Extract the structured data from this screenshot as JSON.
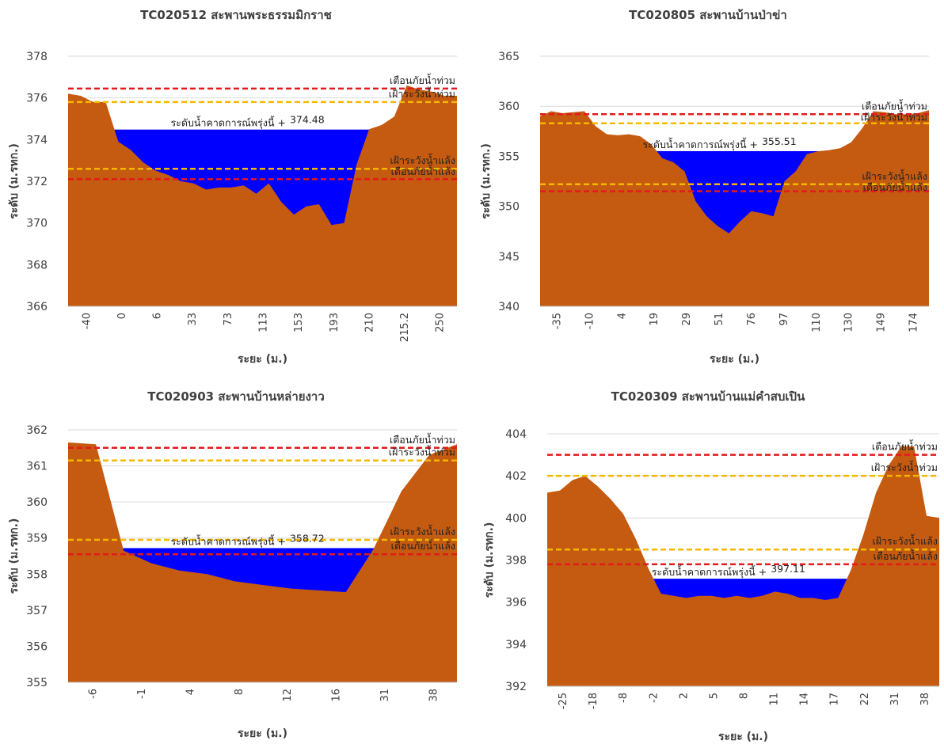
{
  "chart_data": [
    {
      "type": "area",
      "title": "TC020512 สะพานพระธรรมมิกราช",
      "xlabel": "ระยะ (ม.)",
      "ylabel": "ระดับ (ม.รทก.)",
      "ylim": [
        366,
        378
      ],
      "yticks": [
        366,
        368,
        370,
        372,
        374,
        376,
        378
      ],
      "x_tick_labels": [
        "-40",
        "0",
        "6",
        "33",
        "73",
        "113",
        "153",
        "193",
        "210",
        "215.2",
        "250"
      ],
      "ground": [
        376.2,
        376.1,
        375.8,
        375.8,
        373.9,
        373.5,
        372.9,
        372.5,
        372.3,
        372.0,
        371.9,
        371.6,
        371.7,
        371.7,
        371.8,
        371.4,
        371.9,
        371.0,
        370.4,
        370.8,
        370.9,
        369.9,
        370.0,
        372.8,
        374.5,
        374.7,
        375.1,
        376.6,
        376.4,
        376.3,
        376.1,
        376.1
      ],
      "forecast": {
        "label": "ระดับน้ำคาดการณ์พรุ่งนี้ +",
        "value": 374.48,
        "value_text": "374.48"
      },
      "levels": [
        {
          "name": "เตือนภัยน้ำท่วม",
          "value": 376.45,
          "color": "#e31a1c"
        },
        {
          "name": "เฝ้าระวังน้ำท่วม",
          "value": 375.8,
          "color": "#f5b800"
        },
        {
          "name": "เฝ้าระวังน้ำแล้ง",
          "value": 372.6,
          "color": "#f5b800"
        },
        {
          "name": "เตือนภัยน้ำแล้ง",
          "value": 372.1,
          "color": "#e31a1c"
        }
      ]
    },
    {
      "type": "area",
      "title": "TC020805 สะพานบ้านป่าข่า",
      "xlabel": "ระยะ (ม.)",
      "ylabel": "ระดับ (ม.รทก.)",
      "ylim": [
        340,
        365
      ],
      "yticks": [
        340,
        345,
        350,
        355,
        360,
        365
      ],
      "x_tick_labels": [
        "-35",
        "-10",
        "4",
        "19",
        "29",
        "51",
        "76",
        "97",
        "110",
        "130",
        "149",
        "174"
      ],
      "ground": [
        359.0,
        359.5,
        359.3,
        359.4,
        359.5,
        358.0,
        357.2,
        357.1,
        357.2,
        357.0,
        356.2,
        354.8,
        354.4,
        353.5,
        350.5,
        349.0,
        348.0,
        347.3,
        348.5,
        349.5,
        349.3,
        349.0,
        352.5,
        353.5,
        355.2,
        355.5,
        355.6,
        355.8,
        356.4,
        357.8,
        359.5,
        359.4,
        359.2,
        359.2,
        359.3,
        359.6
      ],
      "forecast": {
        "label": "ระดับน้ำคาดการณ์พรุ่งนี้ +",
        "value": 355.51,
        "value_text": "355.51"
      },
      "levels": [
        {
          "name": "เตือนภัยน้ำท่วม",
          "value": 359.2,
          "color": "#e31a1c"
        },
        {
          "name": "เฝ้าระวังน้ำท่วม",
          "value": 358.3,
          "color": "#f5b800"
        },
        {
          "name": "เฝ้าระวังน้ำแล้ง",
          "value": 352.2,
          "color": "#f5b800"
        },
        {
          "name": "เตือนภัยน้ำแล้ง",
          "value": 351.5,
          "color": "#e31a1c"
        }
      ]
    },
    {
      "type": "area",
      "title": "TC020903 สะพานบ้านหล่ายงาว",
      "xlabel": "ระยะ (ม.)",
      "ylabel": "ระดับ (ม.รทก.)",
      "ylim": [
        355,
        362
      ],
      "yticks": [
        355,
        356,
        357,
        358,
        359,
        360,
        361,
        362
      ],
      "x_tick_labels": [
        "-6",
        "-1",
        "4",
        "8",
        "12",
        "16",
        "31",
        "38"
      ],
      "ground": [
        361.65,
        361.6,
        358.65,
        358.3,
        358.1,
        358.0,
        357.8,
        357.7,
        357.6,
        357.55,
        357.5,
        358.7,
        360.3,
        361.3,
        361.6
      ],
      "forecast": {
        "label": "ระดับน้ำคาดการณ์พรุ่งนี้ +",
        "value": 358.72,
        "value_text": "358.72"
      },
      "levels": [
        {
          "name": "เตือนภัยน้ำท่วม",
          "value": 361.5,
          "color": "#e31a1c"
        },
        {
          "name": "เฝ้าระวังน้ำท่วม",
          "value": 361.15,
          "color": "#f5b800"
        },
        {
          "name": "เฝ้าระวังน้ำแล้ง",
          "value": 358.95,
          "color": "#f5b800"
        },
        {
          "name": "เตือนภัยน้ำแล้ง",
          "value": 358.55,
          "color": "#e31a1c"
        }
      ]
    },
    {
      "type": "area",
      "title": "TC020309 สะพานบ้านแม่คำสบเปิน",
      "xlabel": "ระยะ (ม.)",
      "ylabel": "ระดับ (ม.รทก.)",
      "ylim": [
        392,
        404
      ],
      "yticks": [
        392,
        394,
        396,
        398,
        400,
        402,
        404
      ],
      "x_tick_labels": [
        "-25",
        "-18",
        "-8",
        "-2",
        "2",
        "5",
        "8",
        "11",
        "14",
        "17",
        "22",
        "31",
        "38"
      ],
      "ground": [
        401.2,
        401.3,
        401.8,
        402.0,
        401.5,
        400.9,
        400.2,
        399.0,
        397.6,
        396.4,
        396.3,
        396.2,
        396.3,
        396.3,
        396.2,
        396.3,
        396.2,
        396.3,
        396.5,
        396.4,
        396.2,
        396.2,
        396.1,
        396.2,
        397.5,
        399.2,
        401.2,
        402.5,
        403.4,
        403.4,
        400.1,
        400.0
      ],
      "forecast": {
        "label": "ระดับน้ำคาดการณ์พรุ่งนี้ +",
        "value": 397.11,
        "value_text": "397.11"
      },
      "levels": [
        {
          "name": "เตือนภัยน้ำท่วม",
          "value": 403.0,
          "color": "#e31a1c"
        },
        {
          "name": "เฝ้าระวังน้ำท่วม",
          "value": 402.0,
          "color": "#f5b800"
        },
        {
          "name": "เฝ้าระวังน้ำแล้ง",
          "value": 398.5,
          "color": "#f5b800"
        },
        {
          "name": "เตือนภัยน้ำแล้ง",
          "value": 397.8,
          "color": "#e31a1c"
        }
      ]
    }
  ],
  "colors": {
    "ground": "#c55a11",
    "water": "#0000ff",
    "grid": "#d9d9d9"
  }
}
